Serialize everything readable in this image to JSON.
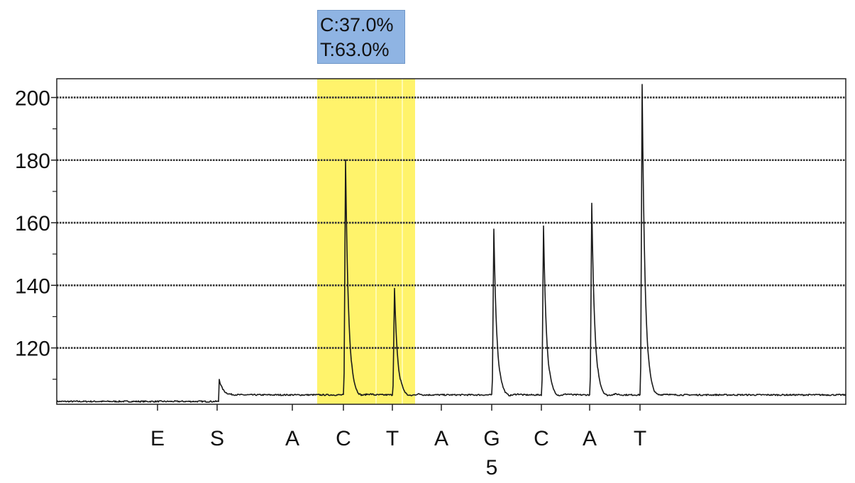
{
  "chart_data": {
    "type": "line",
    "title": "",
    "xlabel": "",
    "ylabel": "",
    "ylim": [
      102,
      206
    ],
    "yticks": [
      200,
      180,
      160,
      140,
      120
    ],
    "grid": true,
    "dispensations": [
      {
        "label": "E",
        "index": ""
      },
      {
        "label": "S",
        "index": ""
      },
      {
        "label": "A",
        "index": ""
      },
      {
        "label": "C",
        "index": ""
      },
      {
        "label": "T",
        "index": ""
      },
      {
        "label": "A",
        "index": ""
      },
      {
        "label": "G",
        "index": "5"
      },
      {
        "label": "C",
        "index": ""
      },
      {
        "label": "A",
        "index": ""
      },
      {
        "label": "T",
        "index": ""
      }
    ],
    "baseline": 105,
    "peaks": [
      {
        "dispensation": "S",
        "height": 110
      },
      {
        "dispensation": "C",
        "height": 180
      },
      {
        "dispensation": "T",
        "height": 139
      },
      {
        "dispensation": "G",
        "height": 158
      },
      {
        "dispensation": "C",
        "height": 159
      },
      {
        "dispensation": "A",
        "height": 166
      },
      {
        "dispensation": "T",
        "height": 204
      }
    ],
    "highlight": {
      "from": "C",
      "to": "T",
      "color": "#fff36b",
      "annotation": [
        "C:37.0%",
        "T:63.0%"
      ]
    },
    "colors": {
      "trace": "#1a1a1a",
      "grid": "#333333",
      "annotation_bg": "#8fb4e3"
    }
  }
}
